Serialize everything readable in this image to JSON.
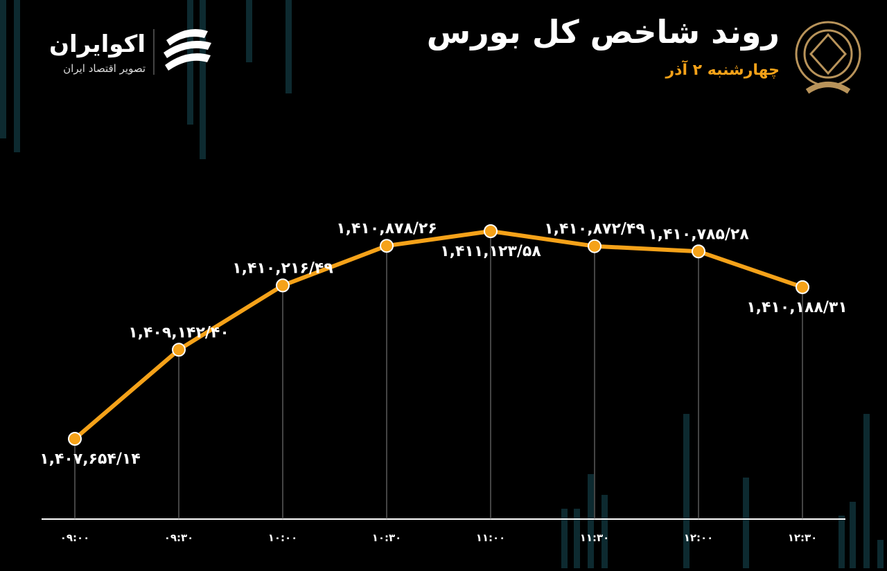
{
  "logo_name": "اکوایران",
  "logo_tagline": "تصویر اقتصاد ایران",
  "chart_data": {
    "type": "line",
    "title": "روند شاخص کل بورس",
    "subtitle": "چهارشنبه ۲ آذر",
    "categories": [
      "۰۹:۰۰",
      "۰۹:۳۰",
      "۱۰:۰۰",
      "۱۰:۳۰",
      "۱۱:۰۰",
      "۱۱:۳۰",
      "۱۲:۰۰",
      "۱۲:۳۰"
    ],
    "values": [
      1407654.14,
      1409142.4,
      1410216.49,
      1410878.26,
      1411123.58,
      1410872.49,
      1410785.28,
      1410188.31
    ],
    "value_labels": [
      "۱,۴۰۷,۶۵۴/۱۴",
      "۱,۴۰۹,۱۴۲/۴۰",
      "۱,۴۱۰,۲۱۶/۴۹",
      "۱,۴۱۰,۸۷۸/۲۶",
      "۱,۴۱۱,۱۲۳/۵۸",
      "۱,۴۱۰,۸۷۲/۴۹",
      "۱,۴۱۰,۷۸۵/۲۸",
      "۱,۴۱۰,۱۸۸/۳۱"
    ],
    "color": "#f5a219"
  }
}
